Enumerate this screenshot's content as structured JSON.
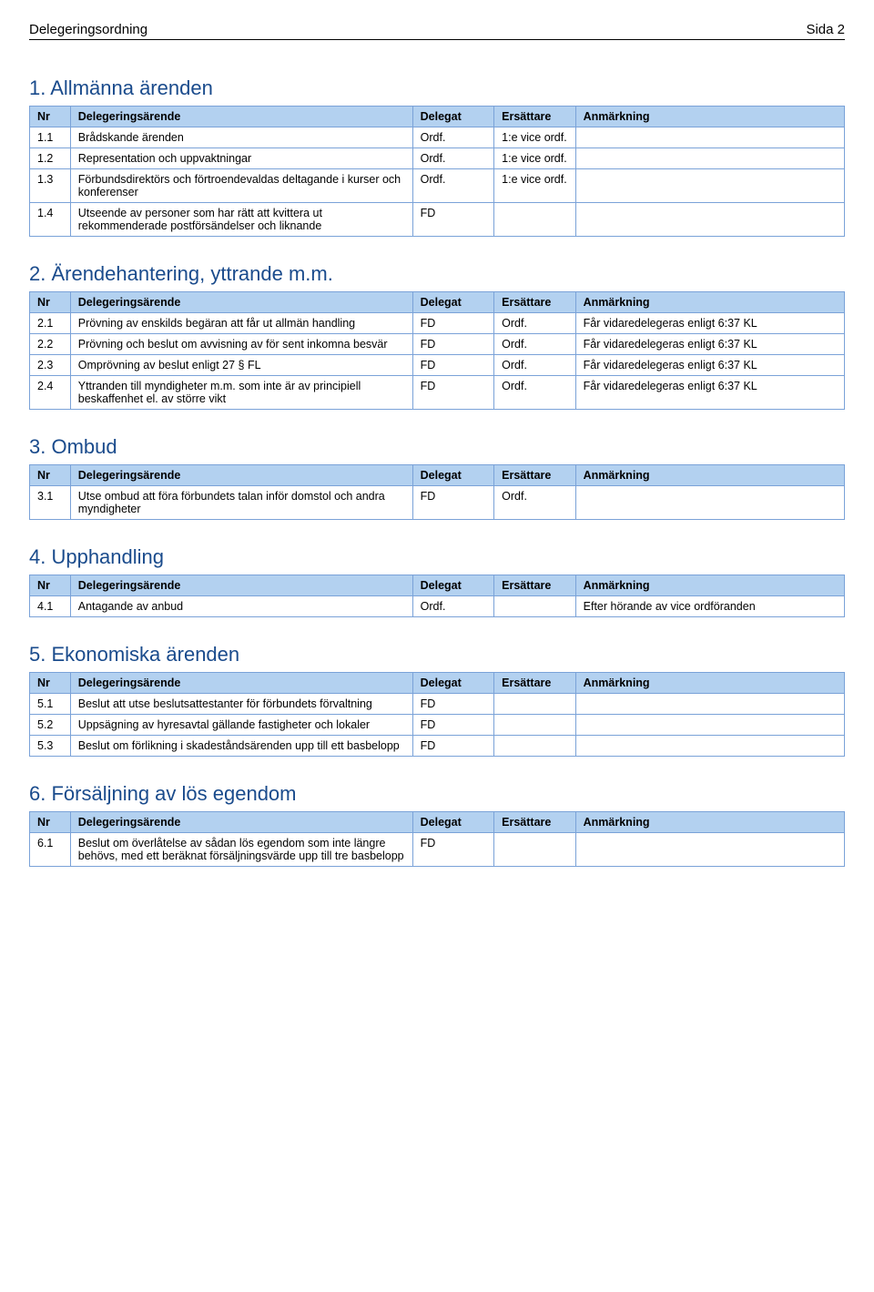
{
  "header": {
    "left": "Delegeringsordning",
    "right": "Sida 2"
  },
  "columns": {
    "nr": "Nr",
    "desc": "Delegeringsärende",
    "del": "Delegat",
    "ers": "Ersättare",
    "anm": "Anmärkning"
  },
  "sections": [
    {
      "title": "1. Allmänna ärenden",
      "rows": [
        {
          "nr": "1.1",
          "desc": "Brådskande ärenden",
          "del": "Ordf.",
          "ers": "1:e vice ordf.",
          "anm": ""
        },
        {
          "nr": "1.2",
          "desc": "Representation och uppvaktningar",
          "del": "Ordf.",
          "ers": "1:e vice ordf.",
          "anm": ""
        },
        {
          "nr": "1.3",
          "desc": "Förbundsdirektörs och förtroendevaldas deltagande i kurser och konferenser",
          "del": "Ordf.",
          "ers": "1:e vice ordf.",
          "anm": ""
        },
        {
          "nr": "1.4",
          "desc": "Utseende av personer som har rätt att kvittera ut rekommenderade postförsändelser och liknande",
          "del": "FD",
          "ers": "",
          "anm": ""
        }
      ]
    },
    {
      "title": "2. Ärendehantering, yttrande m.m.",
      "rows": [
        {
          "nr": "2.1",
          "desc": "Prövning av enskilds begäran att får ut allmän handling",
          "del": "FD",
          "ers": "Ordf.",
          "anm": "Får vidaredelegeras enligt 6:37 KL"
        },
        {
          "nr": "2.2",
          "desc": "Prövning och beslut om avvisning av för sent inkomna besvär",
          "del": "FD",
          "ers": "Ordf.",
          "anm": "Får vidaredelegeras enligt 6:37 KL"
        },
        {
          "nr": "2.3",
          "desc": "Omprövning av beslut enligt 27 § FL",
          "del": "FD",
          "ers": "Ordf.",
          "anm": "Får vidaredelegeras enligt 6:37 KL"
        },
        {
          "nr": "2.4",
          "desc": "Yttranden till myndigheter m.m. som inte är av principiell beskaffenhet el. av större vikt",
          "del": "FD",
          "ers": "Ordf.",
          "anm": "Får vidaredelegeras enligt 6:37 KL"
        }
      ]
    },
    {
      "title": "3. Ombud",
      "rows": [
        {
          "nr": "3.1",
          "desc": "Utse ombud att föra förbundets talan inför domstol och andra myndigheter",
          "del": "FD",
          "ers": "Ordf.",
          "anm": ""
        }
      ]
    },
    {
      "title": "4. Upphandling",
      "rows": [
        {
          "nr": "4.1",
          "desc": "Antagande av anbud",
          "del": "Ordf.",
          "ers": "",
          "anm": "Efter hörande av vice ordföranden"
        }
      ]
    },
    {
      "title": "5. Ekonomiska ärenden",
      "rows": [
        {
          "nr": "5.1",
          "desc": "Beslut att utse beslutsattestanter för förbundets förvaltning",
          "del": "FD",
          "ers": "",
          "anm": ""
        },
        {
          "nr": "5.2",
          "desc": "Uppsägning av hyresavtal gällande fastigheter och lokaler",
          "del": "FD",
          "ers": "",
          "anm": ""
        },
        {
          "nr": "5.3",
          "desc": "Beslut om förlikning i skadeståndsärenden upp till ett basbelopp",
          "del": "FD",
          "ers": "",
          "anm": ""
        }
      ]
    },
    {
      "title": "6. Försäljning av lös egendom",
      "rows": [
        {
          "nr": "6.1",
          "desc": "Beslut om överlåtelse av sådan lös egendom som inte längre behövs, med ett beräknat försäljningsvärde upp till tre basbelopp",
          "del": "FD",
          "ers": "",
          "anm": ""
        }
      ]
    }
  ]
}
